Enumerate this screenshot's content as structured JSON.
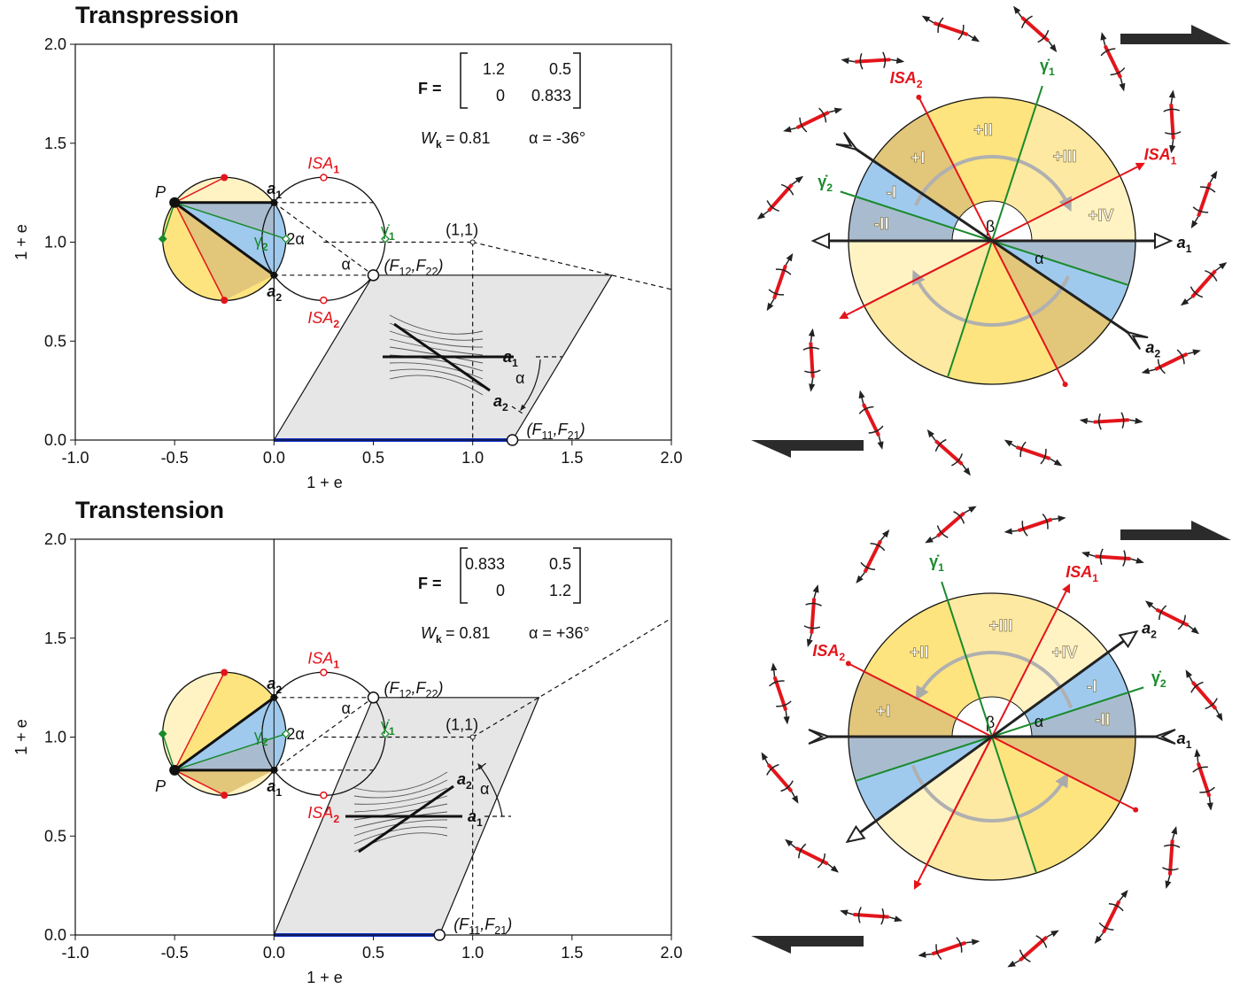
{
  "chart_data": [
    {
      "type": "mohr",
      "title": "Transpression",
      "xlabel": "1 + e",
      "ylabel": "1 + e",
      "xlim": [
        -1,
        2
      ],
      "ylim": [
        0,
        2
      ],
      "xticks": [
        {
          "value": -1,
          "label": "-1.0"
        },
        -0.5,
        {
          "value": 0,
          "label": "0.0"
        },
        0.5,
        {
          "value": 1,
          "label": "1.0"
        },
        1.5,
        {
          "value": 2,
          "label": "2.0"
        }
      ],
      "yticks": [
        {
          "value": 0,
          "label": "0.0"
        },
        0.5,
        {
          "value": 1,
          "label": "1.0"
        },
        1.5,
        {
          "value": 2,
          "label": "2.0"
        }
      ],
      "matrix_label": "F =",
      "matrix": [
        [
          1.2,
          0.5
        ],
        [
          0,
          0.833
        ]
      ],
      "wk": {
        "base": "W",
        "sub": "k"
      },
      "wk_text": "= 0.81",
      "alpha_text": "α = -36°",
      "unit_point": {
        "x": 1,
        "y": 1,
        "label": "(1,1)"
      },
      "p_label": "P",
      "a1": {
        "base": "a",
        "sub": "1"
      },
      "a2": {
        "base": "a",
        "sub": "2"
      },
      "isa1": {
        "base": "ISA",
        "sub": "1"
      },
      "isa2": {
        "base": "ISA",
        "sub": "2"
      },
      "gamma1": {
        "base": "γ̇",
        "sub": "1"
      },
      "gamma2": {
        "base": "γ̇",
        "sub": "2"
      },
      "two_alpha": "2α",
      "alpha": "α",
      "f12_label": [
        "(F",
        "12",
        ",F",
        "22",
        ")"
      ],
      "f11_label": [
        "(F",
        "11",
        ",F",
        "21",
        ")"
      ]
    },
    {
      "type": "mohr",
      "title": "Transtension",
      "xlabel": "1 + e",
      "ylabel": "1 + e",
      "xlim": [
        -1,
        2
      ],
      "ylim": [
        0,
        2
      ],
      "xticks": [
        {
          "value": -1,
          "label": "-1.0"
        },
        -0.5,
        {
          "value": 0,
          "label": "0.0"
        },
        0.5,
        {
          "value": 1,
          "label": "1.0"
        },
        1.5,
        {
          "value": 2,
          "label": "2.0"
        }
      ],
      "yticks": [
        {
          "value": 0,
          "label": "0.0"
        },
        0.5,
        {
          "value": 1,
          "label": "1.0"
        },
        1.5,
        {
          "value": 2,
          "label": "2.0"
        }
      ],
      "matrix_label": "F =",
      "matrix": [
        [
          0.833,
          0.5
        ],
        [
          0,
          1.2
        ]
      ],
      "wk": {
        "base": "W",
        "sub": "k"
      },
      "wk_text": "= 0.81",
      "alpha_text": "α = +36°",
      "unit_point": {
        "x": 1,
        "y": 1,
        "label": "(1,1)"
      },
      "p_label": "P",
      "a1": {
        "base": "a",
        "sub": "1"
      },
      "a2": {
        "base": "a",
        "sub": "2"
      },
      "isa1": {
        "base": "ISA",
        "sub": "1"
      },
      "isa2": {
        "base": "ISA",
        "sub": "2"
      },
      "gamma1": {
        "base": "γ̇",
        "sub": "1"
      },
      "gamma2": {
        "base": "γ̇",
        "sub": "2"
      },
      "two_alpha": "2α",
      "alpha": "α",
      "f12_label": [
        "(F",
        "12",
        ",F",
        "22",
        ")"
      ],
      "f11_label": [
        "(F",
        "11",
        ",F",
        "21",
        ")"
      ]
    }
  ],
  "diagrams": [
    {
      "sectors": [
        "+IV",
        "+III",
        "+II",
        "+I",
        "-I",
        "-II"
      ],
      "beta": "β",
      "alpha": "α",
      "a1": {
        "base": "a",
        "sub": "1"
      },
      "a2": {
        "base": "a",
        "sub": "2"
      },
      "isa1": {
        "base": "ISA",
        "sub": "1"
      },
      "isa2": {
        "base": "ISA",
        "sub": "2"
      },
      "gamma1": {
        "base": "γ̇",
        "sub": "1"
      },
      "gamma2": {
        "base": "γ̇",
        "sub": "2"
      }
    },
    {
      "sectors": [
        "-II",
        "-I",
        "+IV",
        "+III",
        "+II",
        "+I"
      ],
      "beta": "β",
      "alpha": "α",
      "a1": {
        "base": "a",
        "sub": "1"
      },
      "a2": {
        "base": "a",
        "sub": "2"
      },
      "isa1": {
        "base": "ISA",
        "sub": "1"
      },
      "isa2": {
        "base": "ISA",
        "sub": "2"
      },
      "gamma1": {
        "base": "γ̇",
        "sub": "1"
      },
      "gamma2": {
        "base": "γ̇",
        "sub": "2"
      }
    }
  ]
}
